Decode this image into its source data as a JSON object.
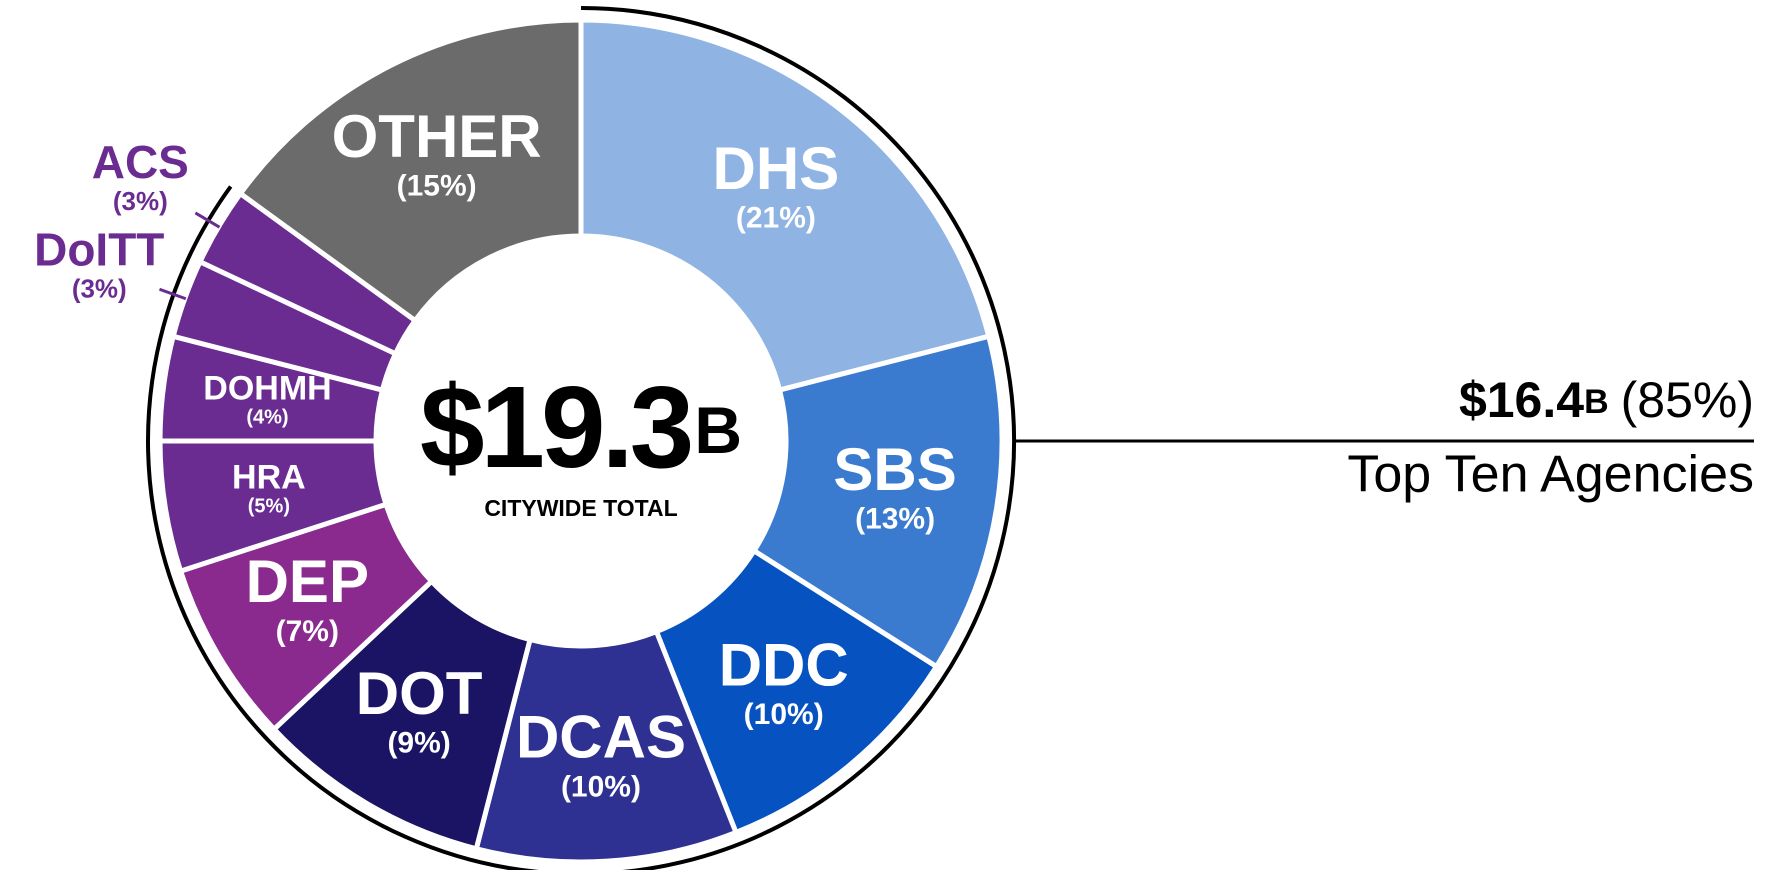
{
  "chart_data": {
    "type": "donut",
    "categories": [
      "DHS",
      "SBS",
      "DDC",
      "DCAS",
      "DOT",
      "DEP",
      "HRA",
      "DOHMH",
      "DoITT",
      "ACS",
      "OTHER"
    ],
    "values": [
      21,
      13,
      10,
      10,
      9,
      7,
      5,
      4,
      3,
      3,
      15
    ],
    "value_labels": [
      "(21%)",
      "(13%)",
      "(10%)",
      "(10%)",
      "(9%)",
      "(7%)",
      "(5%)",
      "(4%)",
      "(3%)",
      "(3%)",
      "(15%)"
    ],
    "colors": [
      "#8fb4e3",
      "#3a7bd0",
      "#0652c0",
      "#2e3191",
      "#1b1464",
      "#8a2a8e",
      "#6a2c91",
      "#6a2c91",
      "#6a2c91",
      "#6a2c91",
      "#6b6b6b"
    ],
    "center_total": "$19.3",
    "center_unit": "B",
    "center_label": "CITYWIDE TOTAL",
    "group_total": "$16.4",
    "group_unit": "B",
    "group_share": "(85%)",
    "group_label": "Top Ten Agencies",
    "group_color": "#000000"
  }
}
